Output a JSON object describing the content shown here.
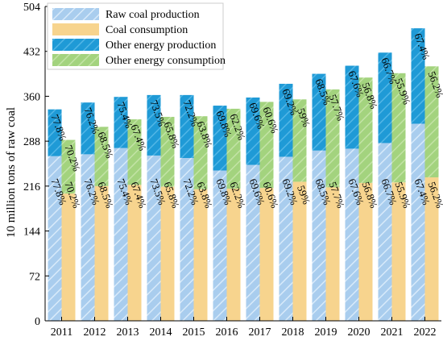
{
  "chart_data": {
    "type": "bar",
    "ylabel": "10 million tons of raw coal",
    "ylim": [
      0,
      504
    ],
    "yticks": [
      0,
      72,
      144,
      216,
      288,
      360,
      432,
      504
    ],
    "categories": [
      "2011",
      "2012",
      "2013",
      "2014",
      "2015",
      "2016",
      "2017",
      "2018",
      "2019",
      "2020",
      "2021",
      "2022"
    ],
    "series": [
      {
        "name": "Raw coal production",
        "values": [
          264,
          267,
          277,
          265,
          261,
          241,
          250,
          263,
          273,
          276,
          285,
          316
        ],
        "color": "#a9cdee"
      },
      {
        "name": "Coal consumption",
        "values": [
          204,
          216,
          218,
          215,
          211,
          212,
          213,
          223,
          214,
          221,
          222,
          230
        ],
        "color": "#f7d48e"
      },
      {
        "name": "Other energy production",
        "values": [
          75,
          83,
          82,
          97,
          101,
          104,
          108,
          117,
          123,
          133,
          145,
          153
        ],
        "color": "#1f9ad6"
      },
      {
        "name": "Other energy consumption",
        "values": [
          86,
          95,
          105,
          112,
          117,
          128,
          138,
          132,
          157,
          169,
          175,
          178
        ],
        "color": "#a3d37e"
      }
    ],
    "labels": {
      "production": [
        "77.8%",
        "76.2%",
        "75.4%",
        "73.5%",
        "72.2%",
        "69.8%",
        "69.6%",
        "69.2%",
        "68.5%",
        "67.6%",
        "66.7%",
        "67.4%"
      ],
      "consumption": [
        "70.2%",
        "68.5%",
        "67.4%",
        "65.8%",
        "63.8%",
        "62.2%",
        "60.6%",
        "59%",
        "57.7%",
        "56.8%",
        "55.9%",
        "56.2%"
      ]
    },
    "legend_position": "top-left"
  }
}
